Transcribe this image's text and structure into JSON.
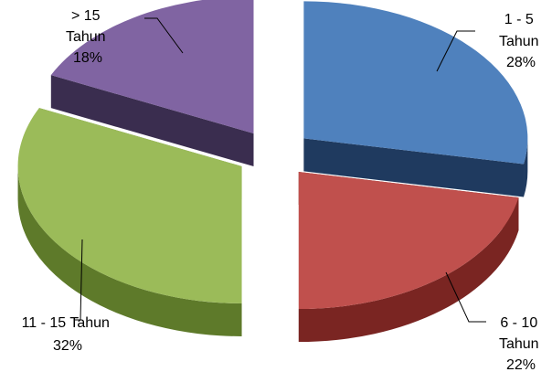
{
  "chart_data": {
    "type": "pie",
    "title": "",
    "categories": [
      "1 - 5 Tahun",
      "6 - 10 Tahun",
      "11 - 15 Tahun",
      "> 15 Tahun"
    ],
    "values": [
      28,
      22,
      32,
      18
    ],
    "unit": "%",
    "legend": "none",
    "exploded": true,
    "slices": [
      {
        "label_lines": [
          "1  -   5",
          "Tahun",
          "28%"
        ],
        "value": 28,
        "color": "#4F81BD",
        "side_color": "#1F3A5F"
      },
      {
        "label_lines": [
          "6  -  10",
          "Tahun",
          "22%"
        ],
        "value": 22,
        "color": "#C0504D",
        "side_color": "#7A2522"
      },
      {
        "label_lines": [
          "11 - 15 Tahun",
          "32%"
        ],
        "value": 32,
        "color": "#9BBB59",
        "side_color": "#5E7A2A"
      },
      {
        "label_lines": [
          ">     15",
          "Tahun",
          "18%"
        ],
        "value": 18,
        "color": "#8064A2",
        "side_color": "#3A2D4F"
      }
    ]
  }
}
